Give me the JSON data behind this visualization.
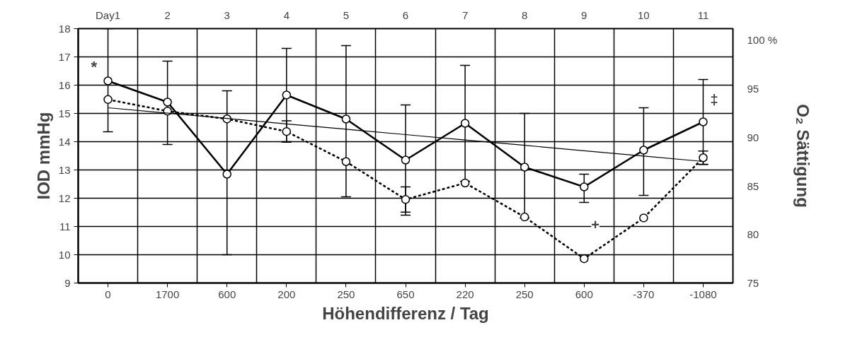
{
  "chart_data": {
    "type": "line",
    "xlabel": "Höhendifferenz / Tag",
    "ylabel": "IOD mmHg",
    "y2label": "O₂ Sättigung",
    "categories": [
      "0",
      "1700",
      "600",
      "200",
      "250",
      "650",
      "220",
      "250",
      "600",
      "-370",
      "-1080"
    ],
    "x2lim": [
      0.5,
      11.5
    ],
    "x2ticks": [
      {
        "value": 1,
        "label": "Day1"
      },
      2,
      3,
      4,
      5,
      6,
      7,
      8,
      9,
      10,
      11
    ],
    "ylim": [
      9,
      18
    ],
    "yticks": [
      9,
      10,
      11,
      12,
      13,
      14,
      15,
      16,
      17,
      18
    ],
    "y2lim": [
      75,
      101.2
    ],
    "y2ticks": [
      75,
      80,
      85,
      90,
      95,
      {
        "value": 100,
        "label": "100 %"
      }
    ],
    "grid": true,
    "marker": "circle",
    "series": [
      {
        "color": "#000000",
        "line_style": "solid",
        "values": [
          16.15,
          15.4,
          12.85,
          15.65,
          14.8,
          13.35,
          14.65,
          13.1,
          12.4,
          13.7,
          14.7
        ],
        "errors": [
          [
            14.35,
            18.0
          ],
          [
            13.9,
            16.85
          ],
          [
            10.0,
            15.8
          ],
          [
            14.0,
            17.3
          ],
          [
            12.05,
            17.4
          ],
          [
            11.4,
            15.3
          ],
          [
            12.6,
            16.7
          ],
          [
            11.3,
            15.0
          ],
          [
            11.85,
            12.85
          ],
          [
            12.1,
            15.2
          ],
          [
            13.2,
            16.2
          ]
        ]
      },
      {
        "color": "#000000",
        "line_style": "dashed",
        "axis": "y2",
        "values": [
          93.9,
          92.7,
          91.9,
          90.6,
          87.5,
          83.6,
          85.3,
          81.8,
          77.5,
          81.7,
          87.9
        ],
        "errors": [
          null,
          null,
          null,
          1.1,
          null,
          1.3,
          null,
          null,
          null,
          null,
          0.7
        ]
      },
      {
        "color": "#000000",
        "line_style": "solid",
        "marker": "none",
        "values": [
          15.2,
          15.01,
          14.82,
          14.63,
          14.44,
          14.25,
          14.06,
          13.87,
          13.68,
          13.49,
          13.3
        ]
      }
    ],
    "annotations": [
      {
        "text": "*",
        "x": "0",
        "y": 16.15
      },
      "‡",
      "+"
    ]
  }
}
